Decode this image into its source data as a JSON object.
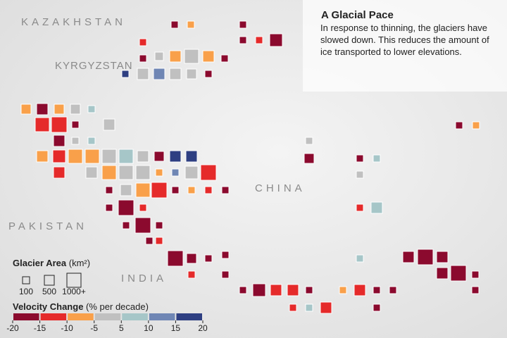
{
  "title": "A Glacial Pace",
  "description": "In response to thinning, the glaciers have slowed down. This reduces the amount of ice transported to lower elevations.",
  "places": [
    "KAZAKHSTAN",
    "KYRGYZSTAN",
    "CHINA",
    "PAKISTAN",
    "INDIA"
  ],
  "legend": {
    "area": {
      "title": "Glacier Area",
      "unit": "(km²)",
      "sizes": [
        "100",
        "500",
        "1000+"
      ]
    },
    "velocity": {
      "title": "Velocity Change",
      "unit": "(% per decade)",
      "ticks": [
        -20,
        -15,
        -10,
        -5,
        5,
        10,
        15,
        20
      ],
      "colors": [
        "#8b0a2e",
        "#e52a2a",
        "#f9a04a",
        "#c0c0c0",
        "#a6c6c8",
        "#6f86b4",
        "#2e3f82"
      ]
    }
  }
}
